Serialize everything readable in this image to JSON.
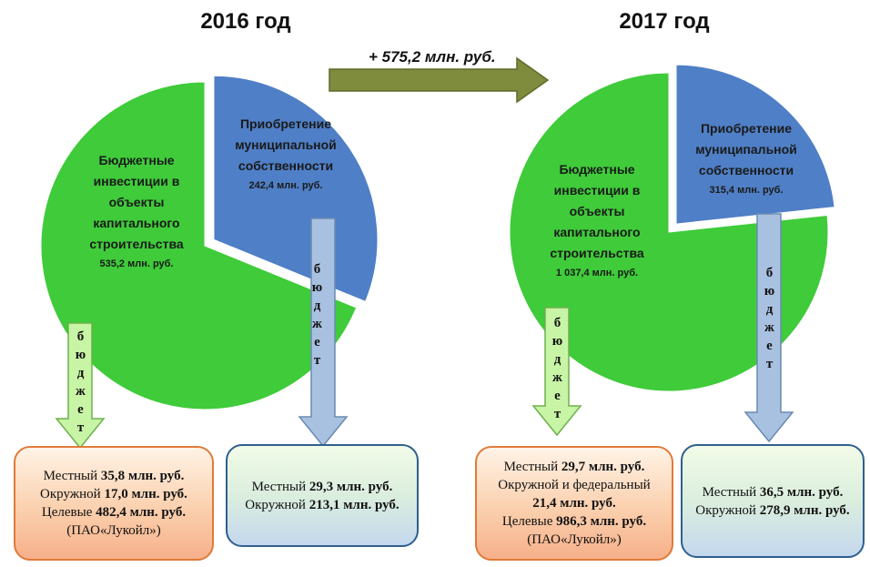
{
  "transition": {
    "label": "+ 575,2 млн. руб."
  },
  "chart_data": [
    {
      "type": "pie",
      "title": "2016 год",
      "categories": [
        "Бюджетные инвестиции в объекты капитального строительства",
        "Приобретение муниципальной собственности"
      ],
      "values": [
        535.2,
        242.4
      ],
      "value_labels": [
        "535,2 млн. руб.",
        "242,4 млн. руб."
      ],
      "colors": [
        "#3fcb3a",
        "#4f7fc6"
      ],
      "funding_label": "бюджет",
      "breakdowns": [
        [
          {
            "name": "Местный",
            "amount": "35,8 млн. руб."
          },
          {
            "name": "Окружной",
            "amount": "17,0 млн. руб."
          },
          {
            "name": "Целевые",
            "amount": "482,4 млн. руб.",
            "note": "(ПАО«Лукойл»)"
          }
        ],
        [
          {
            "name": "Местный",
            "amount": "29,3 млн. руб."
          },
          {
            "name": "Окружной",
            "amount": "213,1 млн. руб."
          }
        ]
      ]
    },
    {
      "type": "pie",
      "title": "2017 год",
      "categories": [
        "Бюджетные инвестиции в объекты капитального строительства",
        "Приобретение муниципальной собственности"
      ],
      "values": [
        1037.4,
        315.4
      ],
      "value_labels": [
        "1 037,4 млн. руб.",
        "315,4 млн. руб."
      ],
      "colors": [
        "#3fcb3a",
        "#4f7fc6"
      ],
      "funding_label": "бюджет",
      "breakdowns": [
        [
          {
            "name": "Местный",
            "amount": "29,7 млн. руб."
          },
          {
            "name": "Окружной и федеральный",
            "amount": "21,4 млн. руб."
          },
          {
            "name": "Целевые",
            "amount": "986,3 млн. руб.",
            "note": "(ПАО«Лукойл»)"
          }
        ],
        [
          {
            "name": "Местный",
            "amount": "36,5 млн. руб."
          },
          {
            "name": "Окружной",
            "amount": "278,9 млн. руб."
          }
        ]
      ]
    }
  ]
}
